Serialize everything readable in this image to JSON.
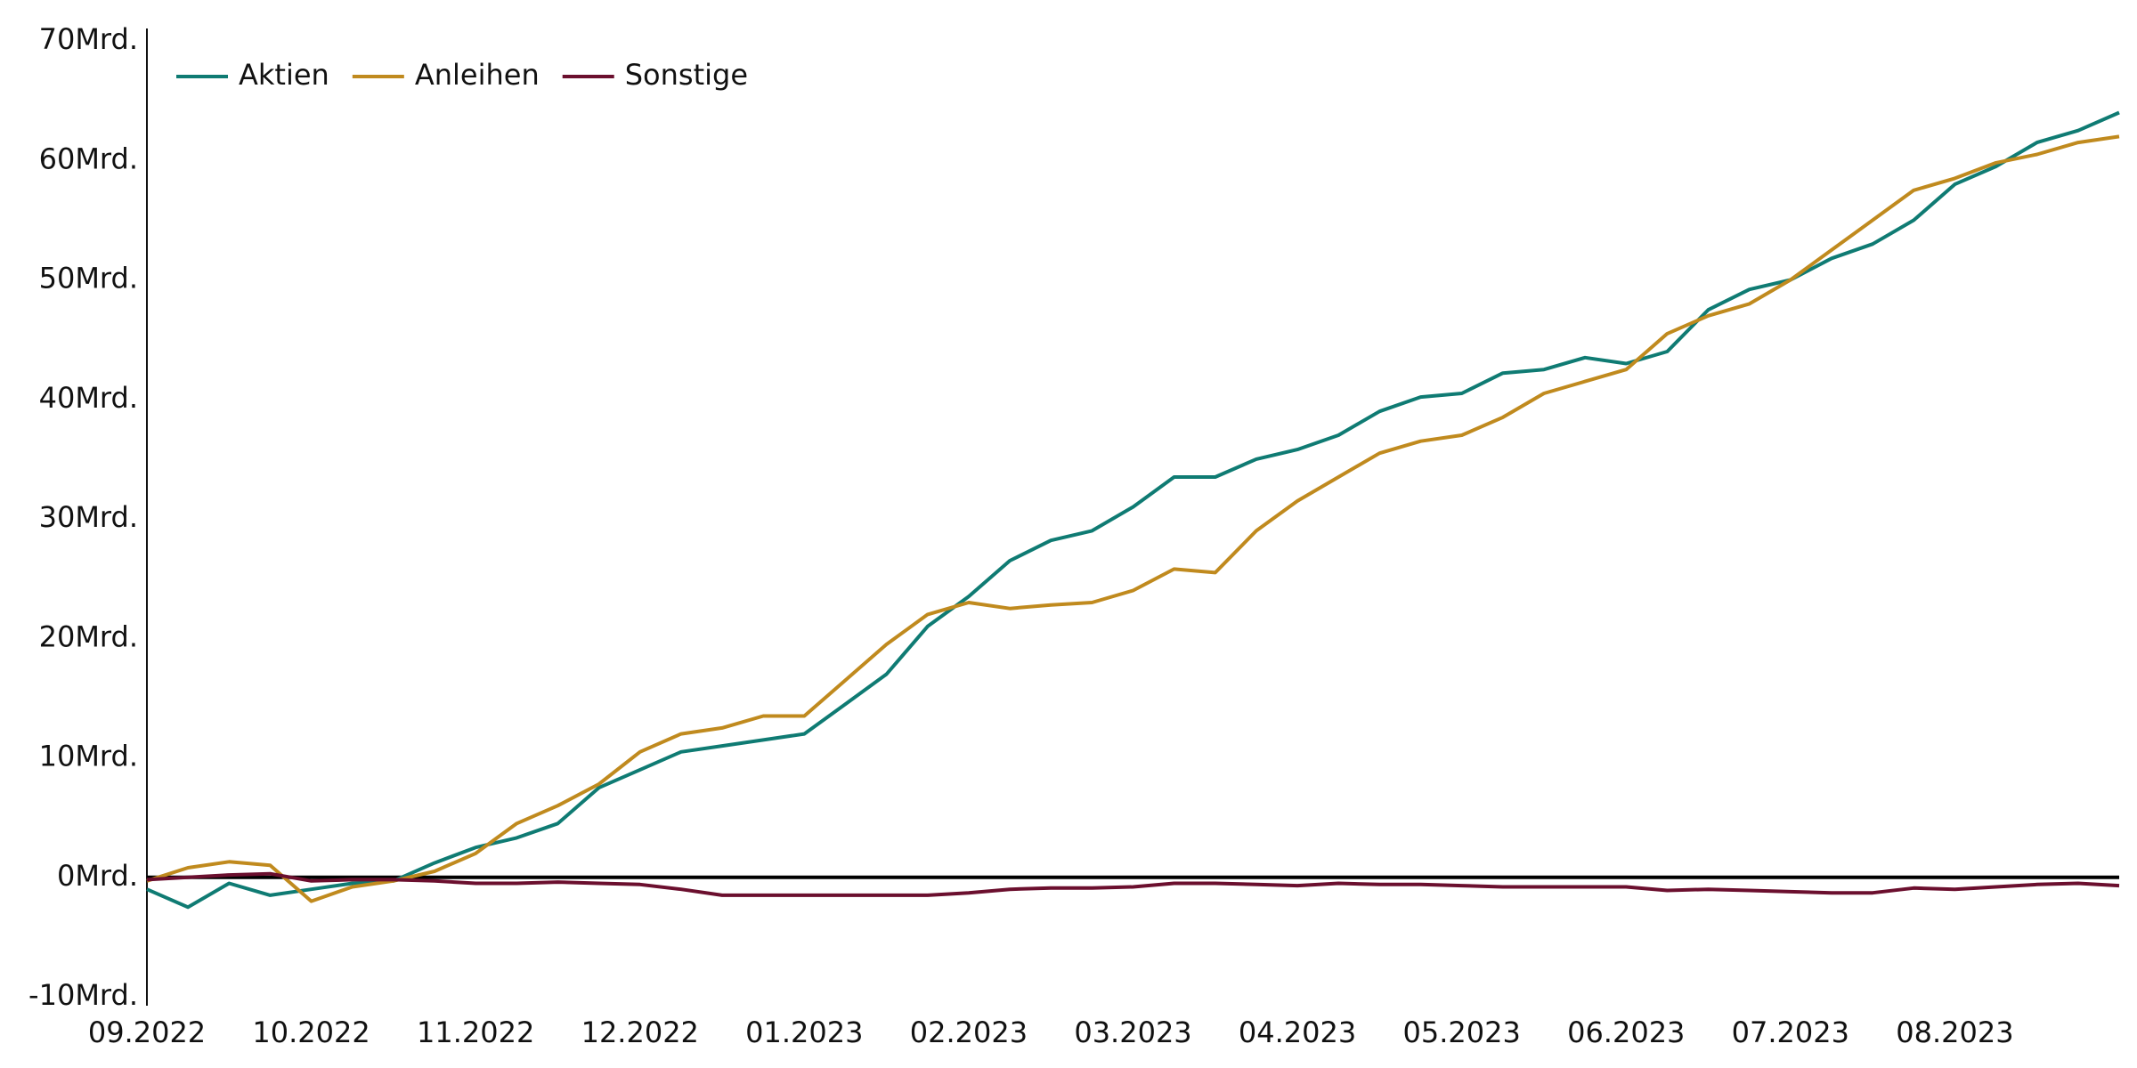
{
  "chart_data": {
    "type": "line",
    "categories": [
      "09.2022",
      null,
      null,
      null,
      "10.2022",
      null,
      null,
      null,
      "11.2022",
      null,
      null,
      null,
      "12.2022",
      null,
      null,
      null,
      "01.2023",
      null,
      null,
      null,
      "02.2023",
      null,
      null,
      null,
      "03.2023",
      null,
      null,
      null,
      "04.2023",
      null,
      null,
      null,
      "05.2023",
      null,
      null,
      null,
      "06.2023",
      null,
      null,
      null,
      "07.2023",
      null,
      null,
      null,
      "08.2023",
      null,
      null,
      null,
      null
    ],
    "series": [
      {
        "name": "Aktien",
        "color": "#0f7b73",
        "values": [
          -1,
          -2.5,
          -0.5,
          -1.5,
          -1,
          -0.5,
          -0.3,
          1.2,
          2.5,
          3.3,
          4.5,
          7.5,
          9,
          10.5,
          11,
          11.5,
          12,
          14.5,
          17,
          21,
          23.5,
          26.5,
          28.2,
          29,
          31,
          33.5,
          33.5,
          35,
          35.8,
          37,
          39,
          40.2,
          40.5,
          42.2,
          42.5,
          43.5,
          43,
          44,
          47.5,
          49.2,
          50,
          51.8,
          53,
          55,
          58,
          59.5,
          61.5,
          62.5,
          64
        ]
      },
      {
        "name": "Anleihen",
        "color": "#c08a1e",
        "values": [
          -0.3,
          0.8,
          1.3,
          1,
          -2,
          -0.8,
          -0.3,
          0.5,
          2,
          4.5,
          6,
          7.8,
          10.5,
          12,
          12.5,
          13.5,
          13.5,
          16.5,
          19.5,
          22,
          23,
          22.5,
          22.8,
          23,
          24,
          25.8,
          25.5,
          29,
          31.5,
          33.5,
          35.5,
          36.5,
          37,
          38.5,
          40.5,
          41.5,
          42.5,
          45.5,
          47,
          48,
          50,
          52.5,
          55,
          57.5,
          58.5,
          59.8,
          60.5,
          61.5,
          62
        ]
      },
      {
        "name": "Sonstige",
        "color": "#6b0f2e",
        "values": [
          -0.2,
          0,
          0.2,
          0.3,
          -0.3,
          -0.2,
          -0.2,
          -0.3,
          -0.5,
          -0.5,
          -0.4,
          -0.5,
          -0.6,
          -1,
          -1.5,
          -1.5,
          -1.5,
          -1.5,
          -1.5,
          -1.5,
          -1.3,
          -1,
          -0.9,
          -0.9,
          -0.8,
          -0.5,
          -0.5,
          -0.6,
          -0.7,
          -0.5,
          -0.6,
          -0.6,
          -0.7,
          -0.8,
          -0.8,
          -0.8,
          -0.8,
          -1.1,
          -1,
          -1.1,
          -1.2,
          -1.3,
          -1.3,
          -0.9,
          -1,
          -0.8,
          -0.6,
          -0.5,
          -0.7
        ]
      }
    ],
    "ylim": [
      -10,
      70
    ],
    "yticks": [
      {
        "value": -10,
        "label": "-10Mrd."
      },
      {
        "value": 0,
        "label": "0Mrd."
      },
      {
        "value": 10,
        "label": "10Mrd."
      },
      {
        "value": 20,
        "label": "20Mrd."
      },
      {
        "value": 30,
        "label": "30Mrd."
      },
      {
        "value": 40,
        "label": "40Mrd."
      },
      {
        "value": 50,
        "label": "50Mrd."
      },
      {
        "value": 60,
        "label": "60Mrd."
      },
      {
        "value": 70,
        "label": "70Mrd."
      }
    ],
    "legend": "top-left"
  }
}
